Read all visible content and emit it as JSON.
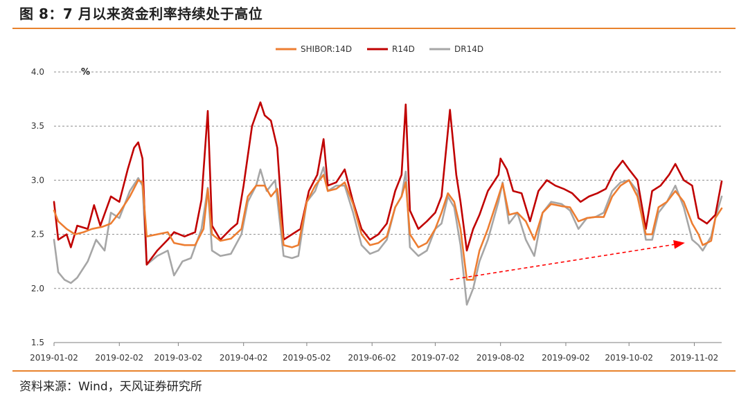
{
  "title": "图 8：7 月以来资金利率持续处于高位",
  "source": "资料来源：Wind，天风证券研究所",
  "chart_data": {
    "type": "line",
    "ylabel": "%",
    "ylim": [
      1.5,
      4.0
    ],
    "yticks": [
      "4.0",
      "3.5",
      "3.0",
      "2.5",
      "2.0",
      "1.5"
    ],
    "ytick_values": [
      4.0,
      3.5,
      3.0,
      2.5,
      2.0,
      1.5
    ],
    "xticks": [
      "2019-01-02",
      "2019-02-02",
      "2019-03-02",
      "2019-04-02",
      "2019-05-02",
      "2019-06-02",
      "2019-07-02",
      "2019-08-02",
      "2019-09-02",
      "2019-10-02",
      "2019-11-02"
    ],
    "xlim": [
      "2019-01-02",
      "2019-11-15"
    ],
    "grid": "horizontal dashed",
    "legend_position": "top-center",
    "colors": {
      "shibor": "#ed7d31",
      "r14d": "#c00000",
      "dr14d": "#a6a6a6",
      "arrow": "#ff0000"
    },
    "series": [
      {
        "name": "SHIBOR:14D",
        "points": [
          [
            "2019-01-02",
            2.72
          ],
          [
            "2019-01-04",
            2.62
          ],
          [
            "2019-01-08",
            2.55
          ],
          [
            "2019-01-12",
            2.5
          ],
          [
            "2019-01-16",
            2.52
          ],
          [
            "2019-01-20",
            2.55
          ],
          [
            "2019-01-25",
            2.57
          ],
          [
            "2019-01-29",
            2.6
          ],
          [
            "2019-02-02",
            2.7
          ],
          [
            "2019-02-07",
            2.85
          ],
          [
            "2019-02-11",
            3.0
          ],
          [
            "2019-02-13",
            2.98
          ],
          [
            "2019-02-15",
            2.48
          ],
          [
            "2019-02-20",
            2.5
          ],
          [
            "2019-02-25",
            2.52
          ],
          [
            "2019-02-28",
            2.42
          ],
          [
            "2019-03-05",
            2.4
          ],
          [
            "2019-03-10",
            2.4
          ],
          [
            "2019-03-14",
            2.55
          ],
          [
            "2019-03-16",
            2.92
          ],
          [
            "2019-03-18",
            2.5
          ],
          [
            "2019-03-22",
            2.44
          ],
          [
            "2019-03-27",
            2.46
          ],
          [
            "2019-04-01",
            2.55
          ],
          [
            "2019-04-04",
            2.85
          ],
          [
            "2019-04-08",
            2.95
          ],
          [
            "2019-04-12",
            2.95
          ],
          [
            "2019-04-15",
            2.85
          ],
          [
            "2019-04-18",
            2.92
          ],
          [
            "2019-04-21",
            2.4
          ],
          [
            "2019-04-25",
            2.38
          ],
          [
            "2019-04-28",
            2.4
          ],
          [
            "2019-05-02",
            2.8
          ],
          [
            "2019-05-06",
            2.95
          ],
          [
            "2019-05-10",
            3.05
          ],
          [
            "2019-05-12",
            2.9
          ],
          [
            "2019-05-16",
            2.92
          ],
          [
            "2019-05-20",
            2.98
          ],
          [
            "2019-05-24",
            2.78
          ],
          [
            "2019-05-28",
            2.5
          ],
          [
            "2019-06-01",
            2.4
          ],
          [
            "2019-06-05",
            2.42
          ],
          [
            "2019-06-09",
            2.48
          ],
          [
            "2019-06-13",
            2.75
          ],
          [
            "2019-06-16",
            2.85
          ],
          [
            "2019-06-18",
            2.98
          ],
          [
            "2019-06-20",
            2.5
          ],
          [
            "2019-06-24",
            2.38
          ],
          [
            "2019-06-28",
            2.42
          ],
          [
            "2019-07-02",
            2.55
          ],
          [
            "2019-07-05",
            2.7
          ],
          [
            "2019-07-08",
            2.88
          ],
          [
            "2019-07-11",
            2.8
          ],
          [
            "2019-07-14",
            2.55
          ],
          [
            "2019-07-17",
            2.08
          ],
          [
            "2019-07-20",
            2.08
          ],
          [
            "2019-07-23",
            2.35
          ],
          [
            "2019-07-27",
            2.55
          ],
          [
            "2019-08-01",
            2.85
          ],
          [
            "2019-08-03",
            2.97
          ],
          [
            "2019-08-06",
            2.68
          ],
          [
            "2019-08-10",
            2.7
          ],
          [
            "2019-08-14",
            2.62
          ],
          [
            "2019-08-18",
            2.45
          ],
          [
            "2019-08-22",
            2.7
          ],
          [
            "2019-08-26",
            2.78
          ],
          [
            "2019-08-31",
            2.76
          ],
          [
            "2019-09-04",
            2.75
          ],
          [
            "2019-09-08",
            2.62
          ],
          [
            "2019-09-12",
            2.65
          ],
          [
            "2019-09-16",
            2.66
          ],
          [
            "2019-09-20",
            2.66
          ],
          [
            "2019-09-24",
            2.85
          ],
          [
            "2019-09-28",
            2.95
          ],
          [
            "2019-10-02",
            3.0
          ],
          [
            "2019-10-06",
            2.85
          ],
          [
            "2019-10-10",
            2.5
          ],
          [
            "2019-10-13",
            2.5
          ],
          [
            "2019-10-16",
            2.75
          ],
          [
            "2019-10-20",
            2.8
          ],
          [
            "2019-10-24",
            2.9
          ],
          [
            "2019-10-28",
            2.8
          ],
          [
            "2019-11-01",
            2.6
          ],
          [
            "2019-11-04",
            2.5
          ],
          [
            "2019-11-06",
            2.4
          ],
          [
            "2019-11-10",
            2.44
          ],
          [
            "2019-11-12",
            2.65
          ],
          [
            "2019-11-15",
            2.74
          ]
        ]
      },
      {
        "name": "R14D",
        "points": [
          [
            "2019-01-02",
            2.8
          ],
          [
            "2019-01-04",
            2.45
          ],
          [
            "2019-01-08",
            2.5
          ],
          [
            "2019-01-10",
            2.38
          ],
          [
            "2019-01-13",
            2.58
          ],
          [
            "2019-01-18",
            2.55
          ],
          [
            "2019-01-21",
            2.77
          ],
          [
            "2019-01-24",
            2.58
          ],
          [
            "2019-01-29",
            2.85
          ],
          [
            "2019-02-02",
            2.8
          ],
          [
            "2019-02-06",
            3.1
          ],
          [
            "2019-02-09",
            3.3
          ],
          [
            "2019-02-11",
            3.35
          ],
          [
            "2019-02-13",
            3.2
          ],
          [
            "2019-02-15",
            2.22
          ],
          [
            "2019-02-20",
            2.35
          ],
          [
            "2019-02-25",
            2.45
          ],
          [
            "2019-02-28",
            2.52
          ],
          [
            "2019-03-05",
            2.48
          ],
          [
            "2019-03-10",
            2.52
          ],
          [
            "2019-03-13",
            2.82
          ],
          [
            "2019-03-16",
            3.64
          ],
          [
            "2019-03-18",
            2.58
          ],
          [
            "2019-03-22",
            2.45
          ],
          [
            "2019-03-27",
            2.55
          ],
          [
            "2019-03-30",
            2.6
          ],
          [
            "2019-04-02",
            2.95
          ],
          [
            "2019-04-06",
            3.5
          ],
          [
            "2019-04-10",
            3.72
          ],
          [
            "2019-04-12",
            3.6
          ],
          [
            "2019-04-15",
            3.55
          ],
          [
            "2019-04-18",
            3.3
          ],
          [
            "2019-04-21",
            2.45
          ],
          [
            "2019-04-25",
            2.5
          ],
          [
            "2019-04-29",
            2.55
          ],
          [
            "2019-05-03",
            2.9
          ],
          [
            "2019-05-07",
            3.05
          ],
          [
            "2019-05-10",
            3.38
          ],
          [
            "2019-05-12",
            2.95
          ],
          [
            "2019-05-16",
            2.98
          ],
          [
            "2019-05-20",
            3.1
          ],
          [
            "2019-05-24",
            2.8
          ],
          [
            "2019-05-28",
            2.55
          ],
          [
            "2019-06-01",
            2.45
          ],
          [
            "2019-06-05",
            2.5
          ],
          [
            "2019-06-09",
            2.6
          ],
          [
            "2019-06-13",
            2.9
          ],
          [
            "2019-06-16",
            3.05
          ],
          [
            "2019-06-18",
            3.7
          ],
          [
            "2019-06-20",
            2.72
          ],
          [
            "2019-06-24",
            2.55
          ],
          [
            "2019-06-28",
            2.62
          ],
          [
            "2019-07-02",
            2.7
          ],
          [
            "2019-07-05",
            2.85
          ],
          [
            "2019-07-09",
            3.65
          ],
          [
            "2019-07-12",
            3.05
          ],
          [
            "2019-07-14",
            2.8
          ],
          [
            "2019-07-17",
            2.35
          ],
          [
            "2019-07-20",
            2.55
          ],
          [
            "2019-07-23",
            2.68
          ],
          [
            "2019-07-27",
            2.9
          ],
          [
            "2019-08-01",
            3.05
          ],
          [
            "2019-08-02",
            3.2
          ],
          [
            "2019-08-05",
            3.1
          ],
          [
            "2019-08-08",
            2.9
          ],
          [
            "2019-08-12",
            2.88
          ],
          [
            "2019-08-16",
            2.62
          ],
          [
            "2019-08-20",
            2.9
          ],
          [
            "2019-08-24",
            3.0
          ],
          [
            "2019-08-28",
            2.95
          ],
          [
            "2019-09-01",
            2.92
          ],
          [
            "2019-09-05",
            2.88
          ],
          [
            "2019-09-09",
            2.8
          ],
          [
            "2019-09-13",
            2.85
          ],
          [
            "2019-09-17",
            2.88
          ],
          [
            "2019-09-21",
            2.92
          ],
          [
            "2019-09-25",
            3.08
          ],
          [
            "2019-09-29",
            3.18
          ],
          [
            "2019-10-02",
            3.1
          ],
          [
            "2019-10-06",
            3.0
          ],
          [
            "2019-10-10",
            2.55
          ],
          [
            "2019-10-13",
            2.9
          ],
          [
            "2019-10-17",
            2.95
          ],
          [
            "2019-10-21",
            3.05
          ],
          [
            "2019-10-24",
            3.15
          ],
          [
            "2019-10-28",
            3.0
          ],
          [
            "2019-11-01",
            2.95
          ],
          [
            "2019-11-04",
            2.65
          ],
          [
            "2019-11-08",
            2.6
          ],
          [
            "2019-11-12",
            2.68
          ],
          [
            "2019-11-15",
            2.99
          ]
        ]
      },
      {
        "name": "DR14D",
        "points": [
          [
            "2019-01-02",
            2.45
          ],
          [
            "2019-01-04",
            2.15
          ],
          [
            "2019-01-07",
            2.08
          ],
          [
            "2019-01-10",
            2.05
          ],
          [
            "2019-01-13",
            2.1
          ],
          [
            "2019-01-18",
            2.25
          ],
          [
            "2019-01-22",
            2.45
          ],
          [
            "2019-01-26",
            2.35
          ],
          [
            "2019-01-29",
            2.7
          ],
          [
            "2019-02-02",
            2.65
          ],
          [
            "2019-02-07",
            2.9
          ],
          [
            "2019-02-11",
            3.02
          ],
          [
            "2019-02-13",
            2.95
          ],
          [
            "2019-02-15",
            2.22
          ],
          [
            "2019-02-20",
            2.3
          ],
          [
            "2019-02-25",
            2.35
          ],
          [
            "2019-02-28",
            2.12
          ],
          [
            "2019-03-04",
            2.25
          ],
          [
            "2019-03-08",
            2.28
          ],
          [
            "2019-03-13",
            2.55
          ],
          [
            "2019-03-16",
            2.93
          ],
          [
            "2019-03-18",
            2.35
          ],
          [
            "2019-03-22",
            2.3
          ],
          [
            "2019-03-27",
            2.32
          ],
          [
            "2019-04-01",
            2.5
          ],
          [
            "2019-04-04",
            2.8
          ],
          [
            "2019-04-08",
            2.95
          ],
          [
            "2019-04-10",
            3.1
          ],
          [
            "2019-04-13",
            2.9
          ],
          [
            "2019-04-17",
            3.0
          ],
          [
            "2019-04-21",
            2.3
          ],
          [
            "2019-04-25",
            2.28
          ],
          [
            "2019-04-28",
            2.3
          ],
          [
            "2019-05-02",
            2.8
          ],
          [
            "2019-05-06",
            2.9
          ],
          [
            "2019-05-10",
            3.12
          ],
          [
            "2019-05-12",
            2.9
          ],
          [
            "2019-05-16",
            2.95
          ],
          [
            "2019-05-20",
            2.95
          ],
          [
            "2019-05-24",
            2.7
          ],
          [
            "2019-05-28",
            2.4
          ],
          [
            "2019-06-01",
            2.32
          ],
          [
            "2019-06-05",
            2.35
          ],
          [
            "2019-06-09",
            2.45
          ],
          [
            "2019-06-13",
            2.75
          ],
          [
            "2019-06-16",
            2.85
          ],
          [
            "2019-06-18",
            3.08
          ],
          [
            "2019-06-20",
            2.38
          ],
          [
            "2019-06-24",
            2.3
          ],
          [
            "2019-06-28",
            2.35
          ],
          [
            "2019-07-02",
            2.55
          ],
          [
            "2019-07-05",
            2.6
          ],
          [
            "2019-07-08",
            2.85
          ],
          [
            "2019-07-11",
            2.75
          ],
          [
            "2019-07-14",
            2.4
          ],
          [
            "2019-07-17",
            1.85
          ],
          [
            "2019-07-20",
            2.0
          ],
          [
            "2019-07-23",
            2.25
          ],
          [
            "2019-07-27",
            2.45
          ],
          [
            "2019-08-01",
            2.8
          ],
          [
            "2019-08-03",
            2.98
          ],
          [
            "2019-08-06",
            2.6
          ],
          [
            "2019-08-10",
            2.7
          ],
          [
            "2019-08-14",
            2.45
          ],
          [
            "2019-08-18",
            2.3
          ],
          [
            "2019-08-22",
            2.7
          ],
          [
            "2019-08-26",
            2.8
          ],
          [
            "2019-08-31",
            2.78
          ],
          [
            "2019-09-04",
            2.72
          ],
          [
            "2019-09-08",
            2.55
          ],
          [
            "2019-09-12",
            2.65
          ],
          [
            "2019-09-16",
            2.66
          ],
          [
            "2019-09-20",
            2.7
          ],
          [
            "2019-09-24",
            2.9
          ],
          [
            "2019-09-28",
            2.98
          ],
          [
            "2019-10-02",
            3.0
          ],
          [
            "2019-10-06",
            2.9
          ],
          [
            "2019-10-10",
            2.45
          ],
          [
            "2019-10-13",
            2.45
          ],
          [
            "2019-10-16",
            2.7
          ],
          [
            "2019-10-20",
            2.8
          ],
          [
            "2019-10-24",
            2.95
          ],
          [
            "2019-10-28",
            2.75
          ],
          [
            "2019-11-01",
            2.45
          ],
          [
            "2019-11-04",
            2.4
          ],
          [
            "2019-11-06",
            2.35
          ],
          [
            "2019-11-10",
            2.48
          ],
          [
            "2019-11-12",
            2.65
          ],
          [
            "2019-11-15",
            2.85
          ]
        ]
      }
    ],
    "annotation": {
      "type": "arrow",
      "from": [
        "2019-07-09",
        2.08
      ],
      "to": [
        "2019-10-28",
        2.42
      ]
    }
  }
}
